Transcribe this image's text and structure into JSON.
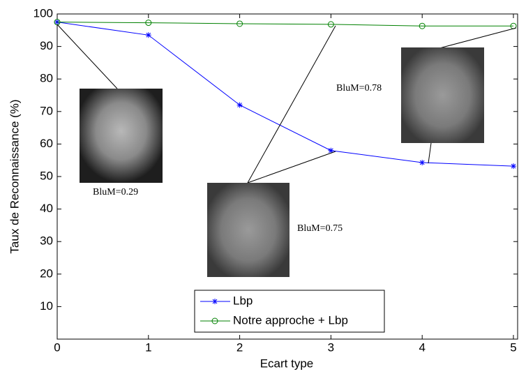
{
  "chart_data": {
    "type": "line",
    "xlabel": "Ecart type",
    "ylabel": "Taux de Reconnaissance (%)",
    "x": [
      0,
      1,
      2,
      3,
      4,
      5
    ],
    "series": [
      {
        "name": "Lbp",
        "color": "#0000ff",
        "marker": "star",
        "values": [
          97.5,
          93.5,
          72,
          58,
          54.3,
          53.2
        ]
      },
      {
        "name": "Notre approche + Lbp",
        "color": "#008000",
        "marker": "circle",
        "values": [
          97.5,
          97.3,
          97,
          96.8,
          96.3,
          96.3
        ]
      }
    ],
    "xlim": [
      0,
      5
    ],
    "ylim": [
      0,
      100
    ],
    "xticks": [
      0,
      1,
      2,
      3,
      4,
      5
    ],
    "yticks": [
      10,
      20,
      30,
      40,
      50,
      60,
      70,
      80,
      90,
      100
    ],
    "legend": "lower center",
    "annotations": [
      "BluM=0.29",
      "BluM=0.75",
      "BluM=0.78"
    ]
  }
}
